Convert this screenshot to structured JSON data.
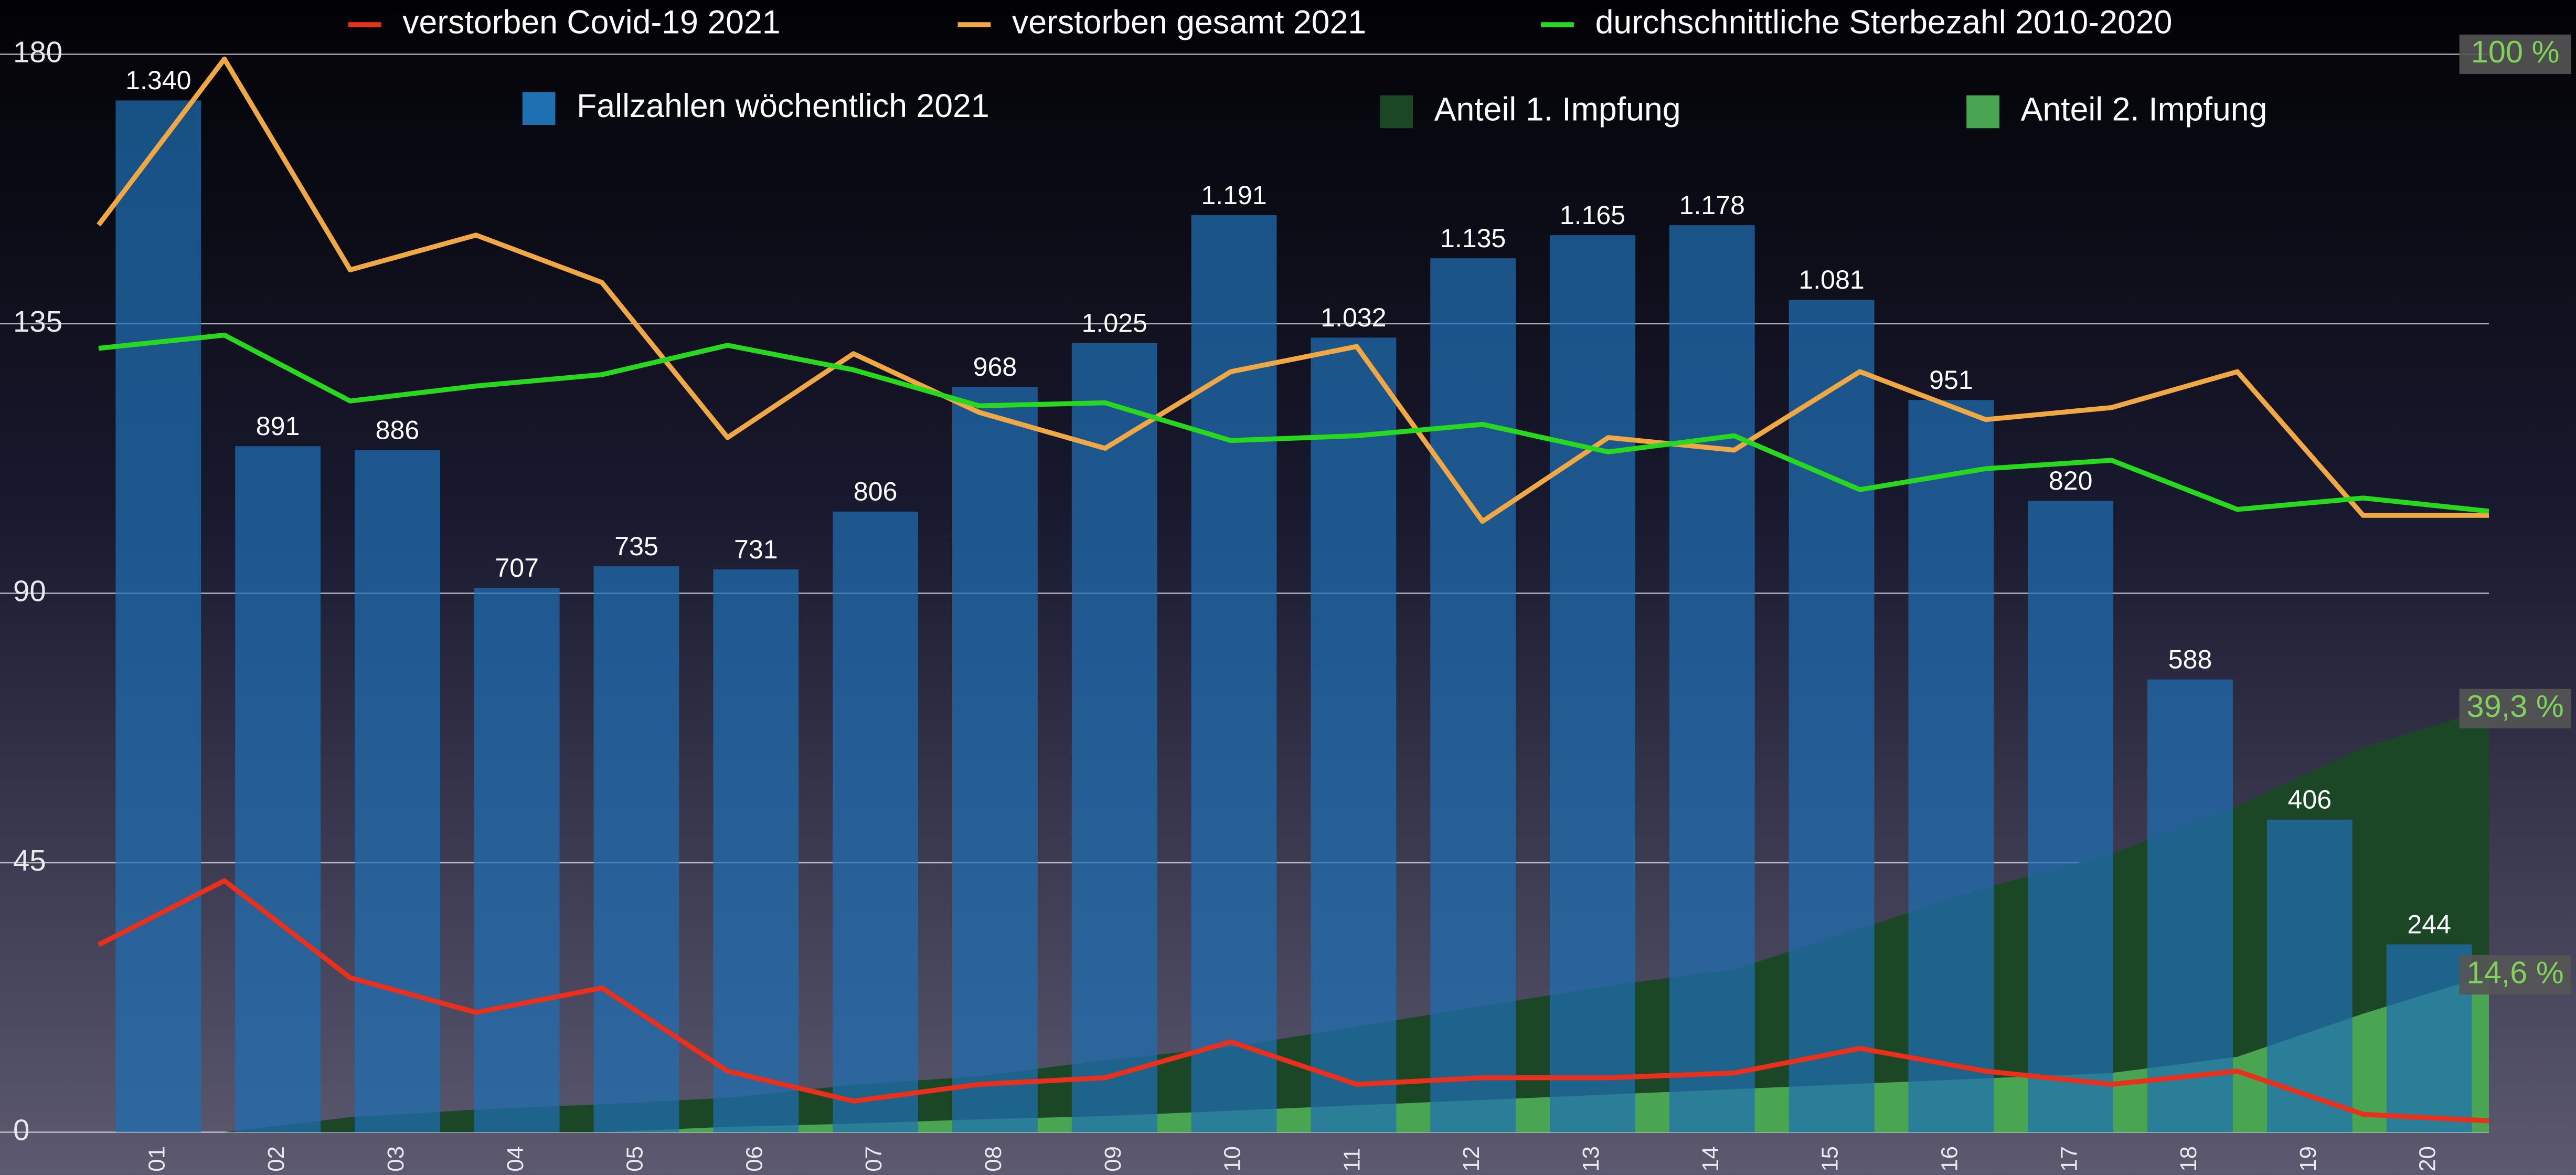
{
  "chart_data": {
    "type": "combo",
    "categories": [
      "01",
      "02",
      "03",
      "04",
      "05",
      "06",
      "07",
      "08",
      "09",
      "10",
      "11",
      "12",
      "13",
      "14",
      "15",
      "16",
      "17",
      "18",
      "19",
      "20"
    ],
    "ylim": [
      0,
      180
    ],
    "yticks": [
      0,
      45,
      90,
      135,
      180
    ],
    "y2lim": [
      0,
      1400
    ],
    "y3lim": [
      0,
      100
    ],
    "y3ticks": [
      {
        "value": 100,
        "label": "100 %"
      },
      {
        "value": 39.3,
        "label": "39,3 %"
      },
      {
        "value": 14.6,
        "label": "14,6 %"
      }
    ],
    "grid": true,
    "series": [
      {
        "name": "Fallzahlen wöchentlich 2021",
        "type": "bar",
        "axis": "y2",
        "color": "#1f6fb3",
        "values": [
          1340,
          891,
          886,
          707,
          735,
          731,
          806,
          968,
          1025,
          1191,
          1032,
          1135,
          1165,
          1178,
          1081,
          951,
          820,
          588,
          406,
          244
        ],
        "value_labels": [
          "1.340",
          "891",
          "886",
          "707",
          "735",
          "731",
          "806",
          "968",
          "1.025",
          "1.191",
          "1.032",
          "1.135",
          "1.165",
          "1.178",
          "1.081",
          "951",
          "820",
          "588",
          "406",
          "244"
        ]
      },
      {
        "name": "Anteil 1. Impfung",
        "type": "area",
        "axis": "y3",
        "color": "#1b4727",
        "values": [
          0,
          0,
          1.4,
          2.1,
          2.6,
          3.2,
          4.4,
          5.2,
          6.7,
          7.9,
          9.8,
          11.7,
          13.6,
          15.1,
          18.9,
          22.7,
          25.8,
          30.3,
          35.7,
          39.3
        ]
      },
      {
        "name": "Anteil 2. Impfung",
        "type": "area",
        "axis": "y3",
        "color": "#4aa552",
        "values": [
          0,
          0,
          0,
          0,
          0,
          0.5,
          0.8,
          1.2,
          1.5,
          2,
          2.5,
          3,
          3.5,
          4,
          4.5,
          5,
          5.5,
          7,
          11,
          14.6
        ]
      },
      {
        "name": "verstorben Covid-19 2021",
        "type": "line",
        "color": "#e8301c",
        "values": [
          31.3,
          42,
          25.8,
          20,
          24.1,
          10.2,
          5.2,
          8,
          9.1,
          15.1,
          8,
          9.1,
          9.1,
          9.9,
          14,
          10.2,
          8,
          10.2,
          3,
          1.9
        ]
      },
      {
        "name": "verstorben gesamt 2021",
        "type": "line",
        "color": "#f0a845",
        "values": [
          151.5,
          179.2,
          144,
          149.8,
          141.9,
          116,
          130,
          120.2,
          114.2,
          127,
          131.2,
          102,
          116,
          113.9,
          127,
          119,
          121,
          127,
          103,
          103
        ]
      },
      {
        "name": "durchschnittliche Sterbezahl 2010-2020",
        "type": "line",
        "color": "#28d81e",
        "values": [
          130.9,
          133.1,
          122.1,
          124.6,
          126.5,
          131.4,
          127.3,
          121.3,
          121.8,
          115.5,
          116.3,
          118.2,
          113.6,
          116.3,
          107.3,
          110.8,
          112.2,
          104,
          105.9,
          103.7
        ]
      }
    ]
  }
}
